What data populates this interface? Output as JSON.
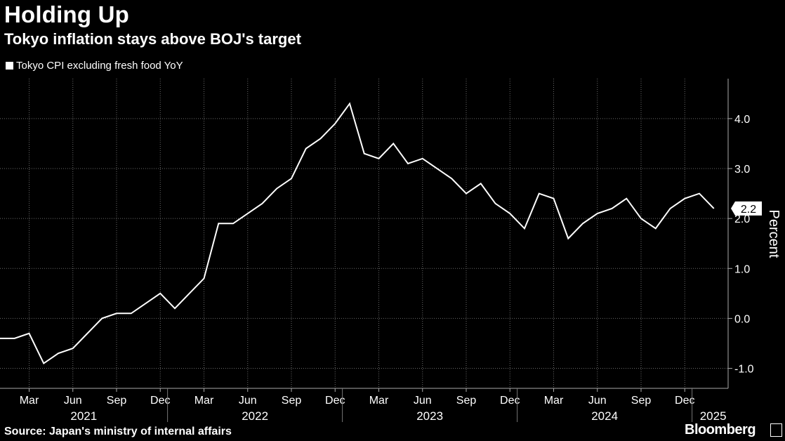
{
  "chart_data": {
    "type": "line",
    "title": "Holding Up",
    "subtitle": "Tokyo inflation stays above BOJ's target",
    "ylabel": "Percent",
    "source": "Source: Japan's ministry of internal affairs",
    "brand": "Bloomberg",
    "ylim": [
      -1.4,
      4.8
    ],
    "yticks": [
      -1.0,
      0.0,
      1.0,
      2.0,
      3.0,
      4.0
    ],
    "ytick_labels": [
      "-1.0",
      "0.0",
      "1.0",
      "2.0",
      "3.0",
      "4.0"
    ],
    "grid": true,
    "legend_position": "top-left",
    "x_start": "2021-01",
    "month_ticks": [
      {
        "label": "Mar",
        "month": 2
      },
      {
        "label": "Jun",
        "month": 5
      },
      {
        "label": "Sep",
        "month": 8
      },
      {
        "label": "Dec",
        "month": 11
      },
      {
        "label": "Mar",
        "month": 14
      },
      {
        "label": "Jun",
        "month": 17
      },
      {
        "label": "Sep",
        "month": 20
      },
      {
        "label": "Dec",
        "month": 23
      },
      {
        "label": "Mar",
        "month": 26
      },
      {
        "label": "Jun",
        "month": 29
      },
      {
        "label": "Sep",
        "month": 32
      },
      {
        "label": "Dec",
        "month": 35
      },
      {
        "label": "Mar",
        "month": 38
      },
      {
        "label": "Jun",
        "month": 41
      },
      {
        "label": "Sep",
        "month": 44
      },
      {
        "label": "Dec",
        "month": 47
      }
    ],
    "years": [
      {
        "label": "2021",
        "start": 0
      },
      {
        "label": "2022",
        "start": 12
      },
      {
        "label": "2023",
        "start": 24
      },
      {
        "label": "2024",
        "start": 36
      },
      {
        "label": "2025",
        "start": 48
      }
    ],
    "series": [
      {
        "name": "Tokyo CPI excluding fresh food YoY",
        "color": "#ffffff",
        "last_value_label": "2.2",
        "values": [
          -0.4,
          -0.4,
          -0.3,
          -0.9,
          -0.7,
          -0.6,
          -0.3,
          0.0,
          0.1,
          0.1,
          0.3,
          0.5,
          0.2,
          0.5,
          0.8,
          1.9,
          1.9,
          2.1,
          2.3,
          2.6,
          2.8,
          3.4,
          3.6,
          3.9,
          4.3,
          3.3,
          3.2,
          3.5,
          3.1,
          3.2,
          3.0,
          2.8,
          2.5,
          2.7,
          2.3,
          2.1,
          1.8,
          2.5,
          2.4,
          1.6,
          1.9,
          2.1,
          2.2,
          2.4,
          2.0,
          1.8,
          2.2,
          2.4,
          2.5,
          2.2
        ]
      }
    ]
  }
}
